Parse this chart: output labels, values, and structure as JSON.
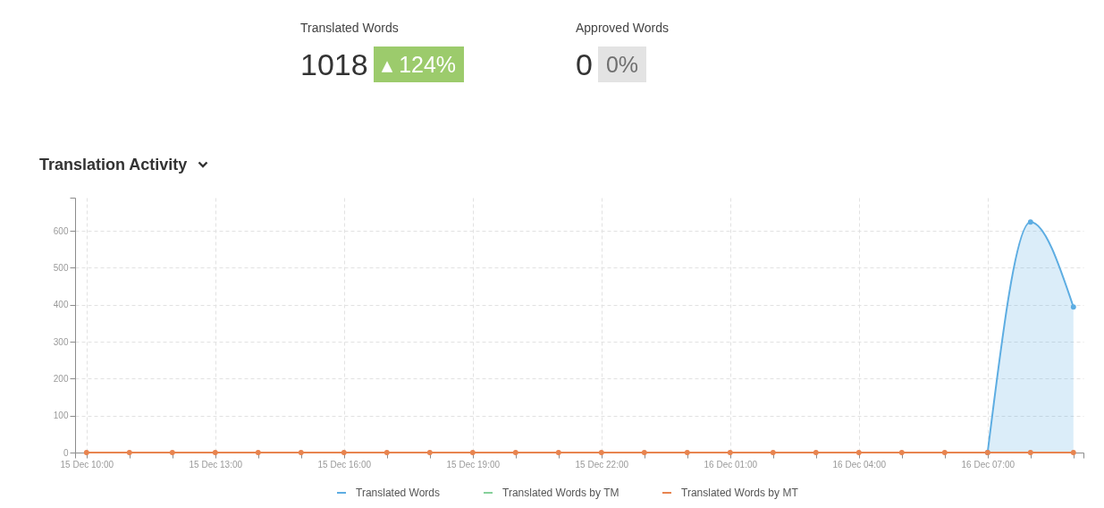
{
  "chart_data": [
    {
      "type": "other",
      "annotations": [
        "Translated Words",
        "1018",
        "▴ 124%",
        "Approved Words",
        "0",
        "0%"
      ],
      "colors": [
        "#9ccb6c",
        "#e3e3e3"
      ]
    },
    {
      "type": "line",
      "title": "Translation Activity",
      "x": [
        "--12-15T10:00",
        "--12-15T11:00",
        "--12-15T12:00",
        "--12-15T13:00",
        "--12-15T14:00",
        "--12-15T15:00",
        "--12-15T16:00",
        "--12-15T17:00",
        "--12-15T18:00",
        "--12-15T19:00",
        "--12-15T20:00",
        "--12-15T21:00",
        "--12-15T22:00",
        "--12-15T23:00",
        "--12-16T00:00",
        "--12-16T01:00",
        "--12-16T02:00",
        "--12-16T03:00",
        "--12-16T04:00",
        "--12-16T05:00",
        "--12-16T06:00",
        "--12-16T07:00",
        "--12-16T08:00",
        "--12-16T09:00"
      ],
      "series": [
        {
          "name": "Translated Words",
          "type": "area",
          "color": "#5dade2",
          "values": [
            null,
            null,
            null,
            null,
            null,
            null,
            null,
            null,
            null,
            null,
            null,
            null,
            null,
            null,
            null,
            null,
            null,
            null,
            null,
            null,
            null,
            0,
            624,
            394
          ]
        },
        {
          "name": "Translated Words by TM",
          "color": "#86d09a",
          "values": [
            null,
            null,
            null,
            null,
            null,
            null,
            null,
            null,
            null,
            null,
            null,
            null,
            null,
            null,
            null,
            null,
            null,
            null,
            null,
            null,
            null,
            null,
            null,
            null
          ]
        },
        {
          "name": "Translated Words by MT",
          "color": "#e8844f",
          "values": [
            0,
            0,
            0,
            0,
            0,
            0,
            0,
            0,
            0,
            0,
            0,
            0,
            0,
            0,
            0,
            0,
            0,
            0,
            0,
            0,
            0,
            0,
            0,
            0
          ]
        }
      ],
      "xlim": [
        "--12-15T09:44",
        "--12-16T09:14"
      ],
      "xticks": [
        {
          "value": "--12-15T09:44",
          "label": null
        },
        {
          "value": "--12-15T10:00",
          "label": "15 Dec 10:00"
        },
        {
          "value": "--12-15T11:00",
          "label": null
        },
        {
          "value": "--12-15T12:00",
          "label": null
        },
        {
          "value": "--12-15T13:00",
          "label": "15 Dec 13:00"
        },
        {
          "value": "--12-15T14:00",
          "label": null
        },
        {
          "value": "--12-15T15:00",
          "label": null
        },
        {
          "value": "--12-15T16:00",
          "label": "15 Dec 16:00"
        },
        {
          "value": "--12-15T17:00",
          "label": null
        },
        {
          "value": "--12-15T18:00",
          "label": null
        },
        {
          "value": "--12-15T19:00",
          "label": "15 Dec 19:00"
        },
        {
          "value": "--12-15T20:00",
          "label": null
        },
        {
          "value": "--12-15T21:00",
          "label": null
        },
        {
          "value": "--12-15T22:00",
          "label": "15 Dec 22:00"
        },
        {
          "value": "--12-15T23:00",
          "label": null
        },
        {
          "value": "--12-16T00:00",
          "label": null
        },
        {
          "value": "--12-16T01:00",
          "label": "16 Dec 01:00"
        },
        {
          "value": "--12-16T02:00",
          "label": null
        },
        {
          "value": "--12-16T03:00",
          "label": null
        },
        {
          "value": "--12-16T04:00",
          "label": "16 Dec 04:00"
        },
        {
          "value": "--12-16T05:00",
          "label": null
        },
        {
          "value": "--12-16T06:00",
          "label": null
        },
        {
          "value": "--12-16T07:00",
          "label": "16 Dec 07:00"
        },
        {
          "value": "--12-16T08:00",
          "label": null
        },
        {
          "value": "--12-16T09:00",
          "label": null
        },
        {
          "value": "--12-16T09:14",
          "label": null
        }
      ],
      "ylim": [
        0,
        690
      ],
      "yticks": [
        0,
        100,
        200,
        300,
        400,
        500,
        600,
        {
          "value": 690,
          "label": null
        }
      ],
      "grid": true,
      "legend": "bottom",
      "marker": "circle",
      "line_style": "solid"
    }
  ]
}
